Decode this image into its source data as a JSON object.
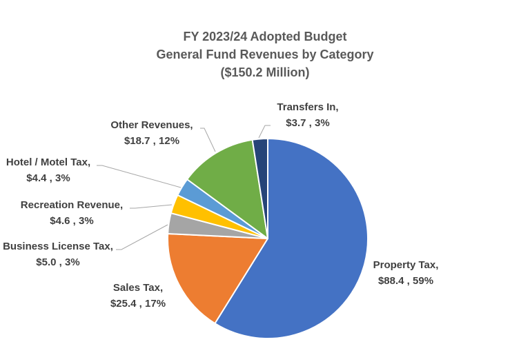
{
  "chart_data": {
    "type": "pie",
    "title": "FY 2023/24 Adopted Budget",
    "subtitle": "General Fund Revenues by Category",
    "total_label": "($150.2 Million)",
    "slices": [
      {
        "name": "Property Tax,",
        "amount": 88.4,
        "percent": 59,
        "value_label": "$88.4 , 59%",
        "color": "#4472C4"
      },
      {
        "name": "Sales Tax,",
        "amount": 25.4,
        "percent": 17,
        "value_label": "$25.4 , 17%",
        "color": "#ED7D31"
      },
      {
        "name": "Business License Tax,",
        "amount": 5.0,
        "percent": 3,
        "value_label": "$5.0 , 3%",
        "color": "#A5A5A5"
      },
      {
        "name": "Recreation Revenue,",
        "amount": 4.6,
        "percent": 3,
        "value_label": "$4.6 , 3%",
        "color": "#FFC000"
      },
      {
        "name": "Hotel / Motel Tax,",
        "amount": 4.4,
        "percent": 3,
        "value_label": "$4.4 , 3%",
        "color": "#5B9BD5"
      },
      {
        "name": "Other Revenues,",
        "amount": 18.7,
        "percent": 12,
        "value_label": "$18.7 , 12%",
        "color": "#70AD47"
      },
      {
        "name": "Transfers In,",
        "amount": 3.7,
        "percent": 3,
        "value_label": "$3.7 , 3%",
        "color": "#264478"
      }
    ]
  }
}
